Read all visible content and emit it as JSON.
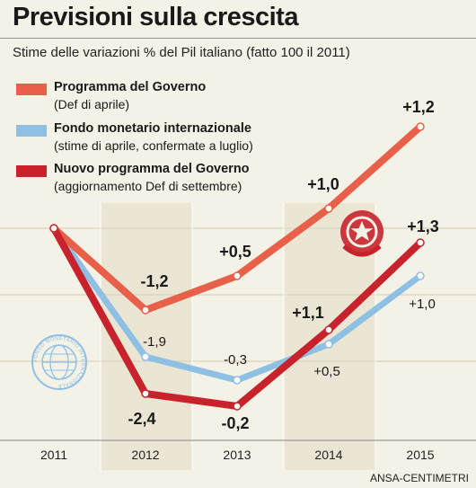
{
  "title": "Previsioni sulla crescita",
  "subtitle": "Stime delle variazioni % del Pil italiano (fatto 100 il 2011)",
  "source": "ANSA-CENTIMETRI",
  "seal_text": "FONDO MONETARIO INTERNAZIONALE",
  "colors": {
    "background": "#f4f1e6",
    "governo": "#e9604a",
    "fmi": "#8ec0e4",
    "nuovo": "#c8232c",
    "band_light": "#f4f1e6",
    "band_dark": "#ebe6d4"
  },
  "legend": [
    {
      "name": "Programma del Governo",
      "note": "(Def di aprile)",
      "color": "#e9604a"
    },
    {
      "name": "Fondo monetario internazionale",
      "note": "(stime di aprile, confermate a luglio)",
      "color": "#8ec0e4"
    },
    {
      "name": "Nuovo programma del Governo",
      "note": "(aggiornamento Def di settembre)",
      "color": "#c8232c"
    }
  ],
  "chart_data": {
    "type": "line",
    "title": "Previsioni sulla crescita",
    "subtitle": "Stime delle variazioni % del Pil italiano (fatto 100 il 2011)",
    "x": [
      "2011",
      "2012",
      "2013",
      "2014",
      "2015"
    ],
    "grid": true,
    "legend_position": "top-left",
    "series": [
      {
        "name": "Programma del Governo",
        "color": "#e9604a",
        "values": [
          null,
          -1.2,
          0.5,
          1.0,
          1.2
        ],
        "labels": [
          "",
          "-1,2",
          "+0,5",
          "+1,0",
          "+1,2"
        ],
        "label_style": "bold"
      },
      {
        "name": "Fondo monetario internazionale",
        "color": "#8ec0e4",
        "values": [
          null,
          -1.9,
          -0.3,
          0.5,
          1.0
        ],
        "labels": [
          "",
          "-1,9",
          "-0,3",
          "+0,5",
          "+1,0"
        ],
        "label_style": "light"
      },
      {
        "name": "Nuovo programma del Governo",
        "color": "#c8232c",
        "values": [
          null,
          -2.4,
          -0.2,
          1.1,
          1.3
        ],
        "labels": [
          "",
          "-2,4",
          "-0,2",
          "+1,1",
          "+1,3"
        ],
        "label_style": "bold"
      }
    ],
    "index_base": "2011 = 100"
  }
}
